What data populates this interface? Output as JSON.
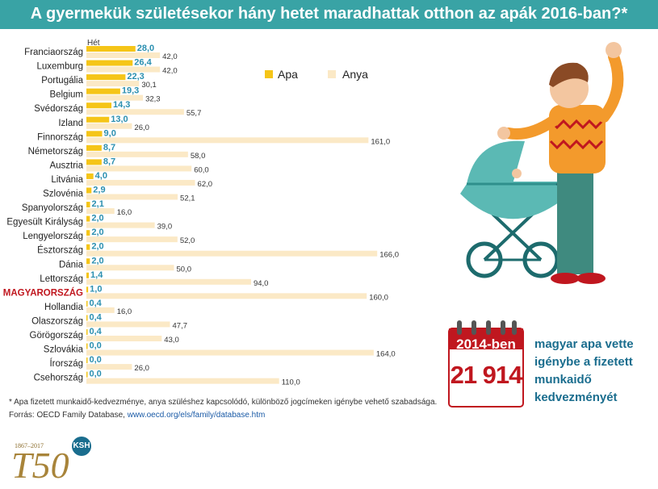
{
  "title": "A gyermekük születésekor hány hetet maradhattak otthon az apák 2016-ban?*",
  "chart_data": {
    "type": "bar",
    "orientation": "horizontal",
    "unit_label": "Hét",
    "highlight_category": "MAGYARORSZÁG",
    "highlight_color": "#c0171f",
    "categories": [
      "Franciaország",
      "Luxemburg",
      "Portugália",
      "Belgium",
      "Svédország",
      "Izland",
      "Finnország",
      "Németország",
      "Ausztria",
      "Litvánia",
      "Szlovénia",
      "Spanyolország",
      "Egyesült Királyság",
      "Lengyelország",
      "Észtország",
      "Dánia",
      "Lettország",
      "MAGYARORSZÁG",
      "Hollandia",
      "Olaszország",
      "Görögország",
      "Szlovákia",
      "Írország",
      "Csehország"
    ],
    "series": [
      {
        "name": "Apa",
        "color": "#f5c518",
        "values": [
          28.0,
          26.4,
          22.3,
          19.3,
          14.3,
          13.0,
          9.0,
          8.7,
          8.7,
          4.0,
          2.9,
          2.1,
          2.0,
          2.0,
          2.0,
          2.0,
          1.4,
          1.0,
          0.4,
          0.4,
          0.4,
          0.0,
          0.0,
          0.0
        ],
        "labels": [
          "28,0",
          "26,4",
          "22,3",
          "19,3",
          "14,3",
          "13,0",
          "9,0",
          "8,7",
          "8,7",
          "4,0",
          "2,9",
          "2,1",
          "2,0",
          "2,0",
          "2,0",
          "2,0",
          "1,4",
          "1,0",
          "0,4",
          "0,4",
          "0,4",
          "0,0",
          "0,0",
          "0,0"
        ]
      },
      {
        "name": "Anya",
        "color": "#fbe9c6",
        "values": [
          42.0,
          42.0,
          30.1,
          32.3,
          55.7,
          26.0,
          161.0,
          58.0,
          60.0,
          62.0,
          52.1,
          16.0,
          39.0,
          52.0,
          166.0,
          50.0,
          94.0,
          160.0,
          16.0,
          47.7,
          43.0,
          164.0,
          26.0,
          110.0
        ],
        "labels": [
          "42,0",
          "42,0",
          "30,1",
          "32,3",
          "55,7",
          "26,0",
          "161,0",
          "58,0",
          "60,0",
          "62,0",
          "52,1",
          "16,0",
          "39,0",
          "52,0",
          "166,0",
          "50,0",
          "94,0",
          "160,0",
          "16,0",
          "47,7",
          "43,0",
          "164,0",
          "26,0",
          "110,0"
        ]
      }
    ],
    "legend_placement": "top-right",
    "grid": false
  },
  "footnote": "* Apa fizetett munkaidő-kedvezménye, anya szüléshez kapcsolódó, különböző jogcímeken igénybe vehető szabadsága.",
  "source_label": "Forrás: OECD Family Database, ",
  "source_url": "www.oecd.org/els/family/database.htm",
  "callout": {
    "year": "2014-ben",
    "number": "21 914",
    "text": "magyar apa vette igénybe a fizetett munkaidő kedvezményét"
  },
  "logo": {
    "years": "1867–2017",
    "badge": "KSH"
  },
  "colors": {
    "title_bar": "#39a3a5",
    "apa_label": "#2b8fb0",
    "anya_label": "#333333",
    "calendar_red": "#c0171f"
  }
}
